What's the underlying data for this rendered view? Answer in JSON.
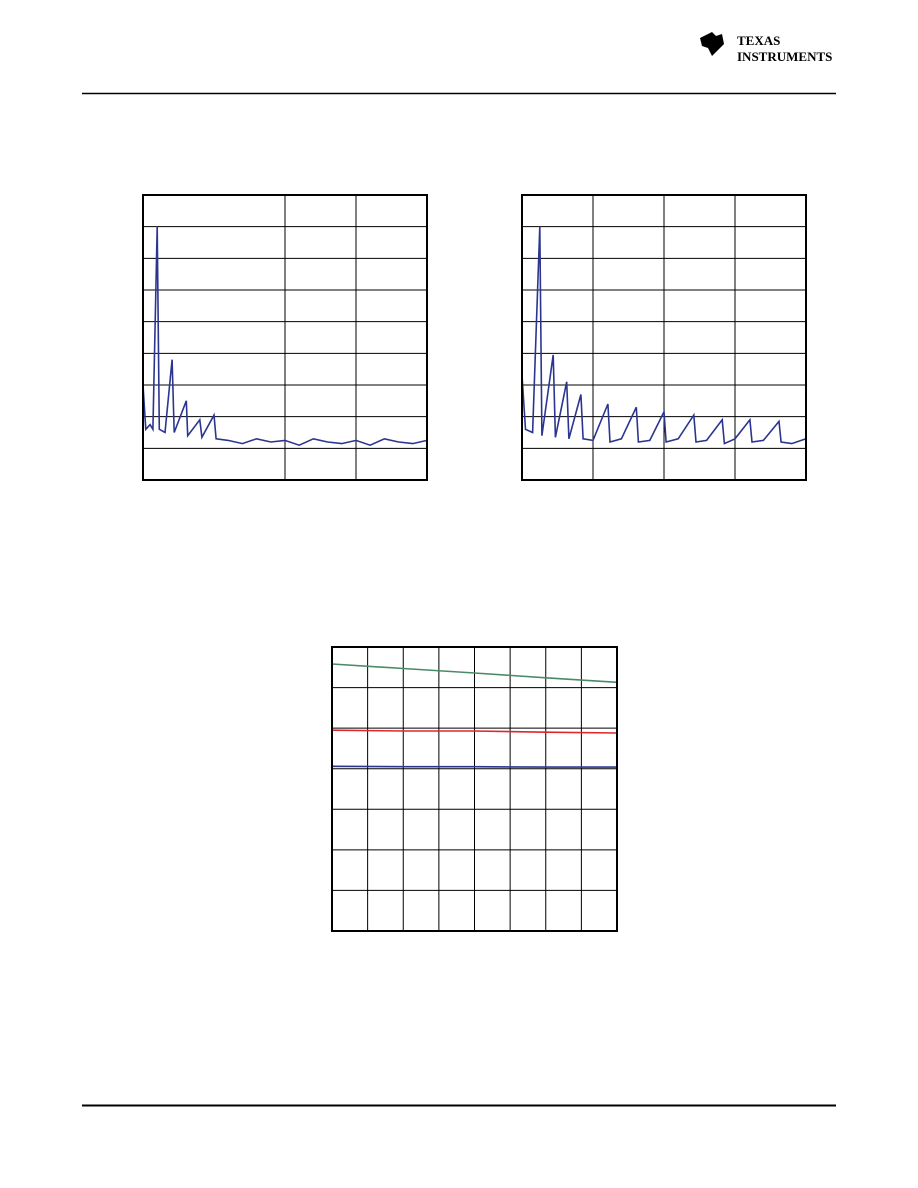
{
  "header": {
    "logo": [
      "TEXAS",
      "INSTRUMENTS"
    ]
  },
  "chart_data": [
    {
      "type": "line",
      "grid": true,
      "xlim": [
        0,
        4
      ],
      "ylim": [
        0,
        9
      ],
      "xticks": [
        2,
        3
      ],
      "yticks": [
        1,
        2,
        3,
        4,
        5,
        6,
        7,
        8
      ],
      "x": [
        0,
        0.04,
        0.1,
        0.14,
        0.2,
        0.23,
        0.31,
        0.41,
        0.44,
        0.61,
        0.63,
        0.8,
        0.83,
        1.0,
        1.03,
        1.2,
        1.4,
        1.6,
        1.8,
        2.0,
        2.2,
        2.4,
        2.6,
        2.8,
        3.0,
        3.2,
        3.4,
        3.6,
        3.8,
        4.0
      ],
      "series": [
        {
          "color": "#2b3590",
          "values": [
            3.0,
            1.6,
            1.75,
            1.6,
            8.0,
            1.6,
            1.5,
            3.8,
            1.5,
            2.5,
            1.4,
            1.9,
            1.35,
            2.05,
            1.3,
            1.25,
            1.15,
            1.3,
            1.2,
            1.25,
            1.1,
            1.3,
            1.2,
            1.15,
            1.25,
            1.1,
            1.3,
            1.2,
            1.15,
            1.25
          ]
        }
      ]
    },
    {
      "type": "line",
      "grid": true,
      "xlim": [
        0,
        4
      ],
      "ylim": [
        0,
        9
      ],
      "xticks": [
        1,
        2,
        3
      ],
      "yticks": [
        1,
        2,
        3,
        4,
        5,
        6,
        7,
        8
      ],
      "x": [
        0,
        0.05,
        0.15,
        0.25,
        0.28,
        0.44,
        0.47,
        0.63,
        0.66,
        0.83,
        0.86,
        1.0,
        1.21,
        1.24,
        1.4,
        1.61,
        1.64,
        1.8,
        2.0,
        2.03,
        2.2,
        2.42,
        2.45,
        2.6,
        2.82,
        2.85,
        3.0,
        3.21,
        3.24,
        3.4,
        3.62,
        3.65,
        3.8,
        4.0
      ],
      "series": [
        {
          "color": "#2b3590",
          "values": [
            3.3,
            1.6,
            1.5,
            8.0,
            1.4,
            3.95,
            1.35,
            3.1,
            1.3,
            2.7,
            1.3,
            1.25,
            2.4,
            1.2,
            1.3,
            2.3,
            1.2,
            1.25,
            2.15,
            1.2,
            1.3,
            2.05,
            1.2,
            1.25,
            1.9,
            1.15,
            1.3,
            1.9,
            1.2,
            1.25,
            1.85,
            1.2,
            1.15,
            1.3
          ]
        }
      ]
    },
    {
      "type": "line",
      "grid": true,
      "xlim": [
        0,
        8
      ],
      "ylim": [
        0,
        7
      ],
      "xticks": [
        1,
        2,
        3,
        4,
        5,
        6,
        7
      ],
      "yticks": [
        1,
        2,
        3,
        4,
        5,
        6
      ],
      "x": [
        0,
        2,
        4,
        6,
        8
      ],
      "series": [
        {
          "color": "#4a8a6a",
          "values": [
            6.58,
            6.47,
            6.36,
            6.24,
            6.13
          ]
        },
        {
          "color": "#e0262b",
          "values": [
            4.95,
            4.93,
            4.93,
            4.9,
            4.88
          ]
        },
        {
          "color": "#2b3590",
          "values": [
            4.06,
            4.05,
            4.05,
            4.04,
            4.04
          ]
        }
      ]
    }
  ]
}
